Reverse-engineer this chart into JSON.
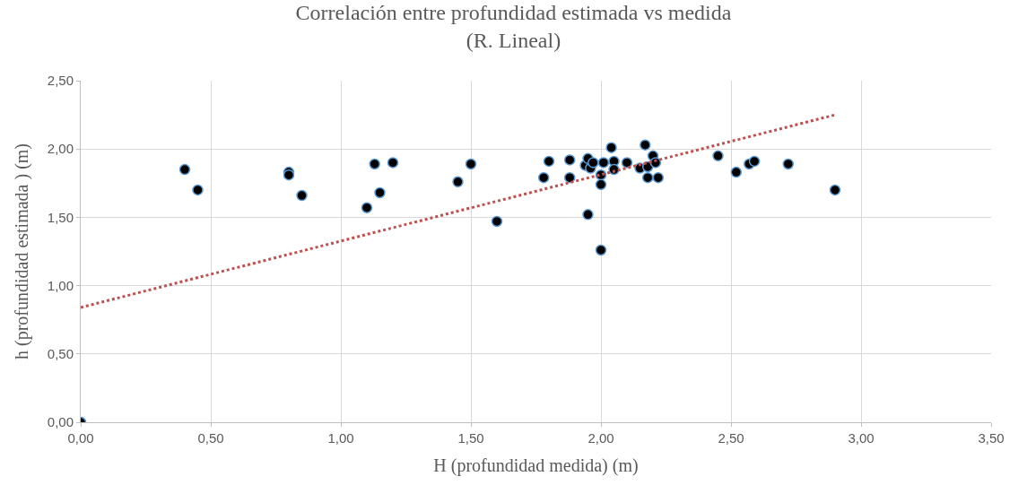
{
  "chart_data": {
    "type": "scatter",
    "title": "Correlación entre profundidad estimada vs medida\n(R. Lineal)",
    "xlabel": "H (profundidad medida) (m)",
    "ylabel": "h (profundidad estimada ) (m)",
    "xlim": [
      0,
      3.5
    ],
    "ylim": [
      0,
      2.5
    ],
    "xticks": [
      {
        "value": 0,
        "label": "0,00"
      },
      {
        "value": 0.5,
        "label": "0,50"
      },
      {
        "value": 1,
        "label": "1,00"
      },
      {
        "value": 1.5,
        "label": "1,50"
      },
      {
        "value": 2,
        "label": "2,00"
      },
      {
        "value": 2.5,
        "label": "2,50"
      },
      {
        "value": 3,
        "label": "3,00"
      },
      {
        "value": 3.5,
        "label": "3,50"
      }
    ],
    "yticks": [
      {
        "value": 0,
        "label": "0,00"
      },
      {
        "value": 0.5,
        "label": "0,50"
      },
      {
        "value": 1,
        "label": "1,00"
      },
      {
        "value": 1.5,
        "label": "1,50"
      },
      {
        "value": 2,
        "label": "2,00"
      },
      {
        "value": 2.5,
        "label": "2,50"
      }
    ],
    "grid": true,
    "series": [
      {
        "color": "#000000",
        "marker": "circle",
        "x": [
          0,
          0.4,
          0.45,
          0.8,
          0.8,
          0.85,
          1.1,
          1.13,
          1.15,
          1.2,
          1.45,
          1.5,
          1.6,
          1.78,
          1.8,
          1.88,
          1.88,
          1.94,
          1.95,
          1.95,
          1.96,
          1.97,
          2.0,
          2.0,
          2.0,
          2.01,
          2.04,
          2.05,
          2.05,
          2.1,
          2.15,
          2.17,
          2.18,
          2.18,
          2.2,
          2.21,
          2.22,
          2.45,
          2.52,
          2.57,
          2.59,
          2.72,
          2.9
        ],
        "values": [
          0,
          1.85,
          1.7,
          1.83,
          1.81,
          1.66,
          1.57,
          1.89,
          1.68,
          1.9,
          1.76,
          1.89,
          1.47,
          1.79,
          1.91,
          1.92,
          1.79,
          1.88,
          1.93,
          1.52,
          1.86,
          1.9,
          1.81,
          1.74,
          1.26,
          1.9,
          2.01,
          1.91,
          1.85,
          1.9,
          1.86,
          2.03,
          1.87,
          1.79,
          1.95,
          1.9,
          1.79,
          1.95,
          1.83,
          1.89,
          1.91,
          1.89,
          1.7
        ]
      },
      {
        "type": "line",
        "color": "#c0504d",
        "line_style": "dotted",
        "x": [
          0,
          2.9
        ],
        "values": [
          0.84,
          2.25
        ]
      }
    ]
  }
}
